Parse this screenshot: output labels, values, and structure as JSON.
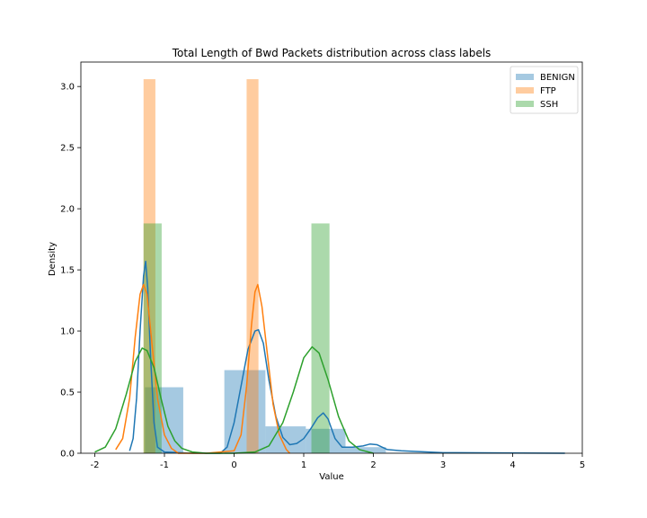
{
  "chart_data": {
    "type": "histogram-kde",
    "title": "Total Length of Bwd Packets distribution across class labels",
    "xlabel": "Value",
    "ylabel": "Density",
    "xlim": [
      -2.2,
      5.0
    ],
    "ylim": [
      0,
      3.2
    ],
    "xticks": [
      -2,
      -1,
      0,
      1,
      2,
      3,
      4,
      5
    ],
    "yticks": [
      0.0,
      0.5,
      1.0,
      1.5,
      2.0,
      2.5,
      3.0
    ],
    "ytick_labels": [
      "0.0",
      "0.5",
      "1.0",
      "1.5",
      "2.0",
      "2.5",
      "3.0"
    ],
    "legend_position": "top-right",
    "series": [
      {
        "name": "BENIGN",
        "hist_color": "#1f77b4",
        "kde_color": "#1f77b4",
        "bars": [
          {
            "x0": -1.28,
            "x1": -0.73,
            "y": 0.54
          },
          {
            "x0": -0.14,
            "x1": 0.45,
            "y": 0.68
          },
          {
            "x0": 0.45,
            "x1": 1.03,
            "y": 0.22
          },
          {
            "x0": 1.03,
            "x1": 1.6,
            "y": 0.2
          },
          {
            "x0": 1.6,
            "x1": 2.18,
            "y": 0.05
          },
          {
            "x0": 2.18,
            "x1": 4.75,
            "y": 0.005
          }
        ],
        "kde": [
          [
            -1.5,
            0.02
          ],
          [
            -1.45,
            0.12
          ],
          [
            -1.4,
            0.45
          ],
          [
            -1.35,
            1.0
          ],
          [
            -1.3,
            1.45
          ],
          [
            -1.27,
            1.57
          ],
          [
            -1.24,
            1.35
          ],
          [
            -1.2,
            0.8
          ],
          [
            -1.15,
            0.25
          ],
          [
            -1.1,
            0.05
          ],
          [
            -1.0,
            0.01
          ],
          [
            -0.6,
            0.0
          ],
          [
            -0.2,
            0.0
          ],
          [
            -0.1,
            0.05
          ],
          [
            0.0,
            0.25
          ],
          [
            0.1,
            0.55
          ],
          [
            0.2,
            0.85
          ],
          [
            0.3,
            1.0
          ],
          [
            0.35,
            1.01
          ],
          [
            0.42,
            0.9
          ],
          [
            0.5,
            0.6
          ],
          [
            0.6,
            0.3
          ],
          [
            0.7,
            0.13
          ],
          [
            0.8,
            0.07
          ],
          [
            0.9,
            0.08
          ],
          [
            1.0,
            0.12
          ],
          [
            1.1,
            0.2
          ],
          [
            1.2,
            0.29
          ],
          [
            1.28,
            0.33
          ],
          [
            1.35,
            0.28
          ],
          [
            1.45,
            0.12
          ],
          [
            1.55,
            0.05
          ],
          [
            1.7,
            0.05
          ],
          [
            1.85,
            0.06
          ],
          [
            1.95,
            0.075
          ],
          [
            2.05,
            0.07
          ],
          [
            2.2,
            0.03
          ],
          [
            2.4,
            0.02
          ],
          [
            3.0,
            0.005
          ],
          [
            4.75,
            0.0
          ]
        ]
      },
      {
        "name": "FTP",
        "hist_color": "#ff7f0e",
        "kde_color": "#ff7f0e",
        "bars": [
          {
            "x0": -1.3,
            "x1": -1.13,
            "y": 3.06
          },
          {
            "x0": 0.18,
            "x1": 0.35,
            "y": 3.06
          }
        ],
        "kde": [
          [
            -1.7,
            0.03
          ],
          [
            -1.6,
            0.12
          ],
          [
            -1.5,
            0.45
          ],
          [
            -1.42,
            0.95
          ],
          [
            -1.35,
            1.3
          ],
          [
            -1.3,
            1.38
          ],
          [
            -1.25,
            1.3
          ],
          [
            -1.18,
            0.9
          ],
          [
            -1.1,
            0.45
          ],
          [
            -1.0,
            0.15
          ],
          [
            -0.9,
            0.04
          ],
          [
            -0.8,
            0.0
          ],
          [
            -0.4,
            0.0
          ],
          [
            0.0,
            0.02
          ],
          [
            0.1,
            0.15
          ],
          [
            0.18,
            0.55
          ],
          [
            0.25,
            1.05
          ],
          [
            0.3,
            1.32
          ],
          [
            0.34,
            1.38
          ],
          [
            0.4,
            1.2
          ],
          [
            0.48,
            0.8
          ],
          [
            0.56,
            0.4
          ],
          [
            0.65,
            0.15
          ],
          [
            0.75,
            0.03
          ],
          [
            0.8,
            0.0
          ]
        ]
      },
      {
        "name": "SSH",
        "hist_color": "#2ca02c",
        "kde_color": "#2ca02c",
        "bars": [
          {
            "x0": -1.3,
            "x1": -1.04,
            "y": 1.88
          },
          {
            "x0": 1.11,
            "x1": 1.37,
            "y": 1.88
          }
        ],
        "kde": [
          [
            -2.0,
            0.01
          ],
          [
            -1.85,
            0.05
          ],
          [
            -1.7,
            0.2
          ],
          [
            -1.55,
            0.48
          ],
          [
            -1.42,
            0.75
          ],
          [
            -1.32,
            0.86
          ],
          [
            -1.25,
            0.84
          ],
          [
            -1.15,
            0.7
          ],
          [
            -1.05,
            0.45
          ],
          [
            -0.95,
            0.22
          ],
          [
            -0.85,
            0.1
          ],
          [
            -0.75,
            0.04
          ],
          [
            -0.6,
            0.01
          ],
          [
            -0.4,
            0.0
          ],
          [
            0.0,
            0.0
          ],
          [
            0.3,
            0.01
          ],
          [
            0.5,
            0.06
          ],
          [
            0.7,
            0.25
          ],
          [
            0.85,
            0.5
          ],
          [
            1.0,
            0.78
          ],
          [
            1.12,
            0.87
          ],
          [
            1.22,
            0.82
          ],
          [
            1.35,
            0.6
          ],
          [
            1.5,
            0.3
          ],
          [
            1.65,
            0.1
          ],
          [
            1.8,
            0.03
          ],
          [
            2.0,
            0.0
          ]
        ]
      }
    ]
  }
}
